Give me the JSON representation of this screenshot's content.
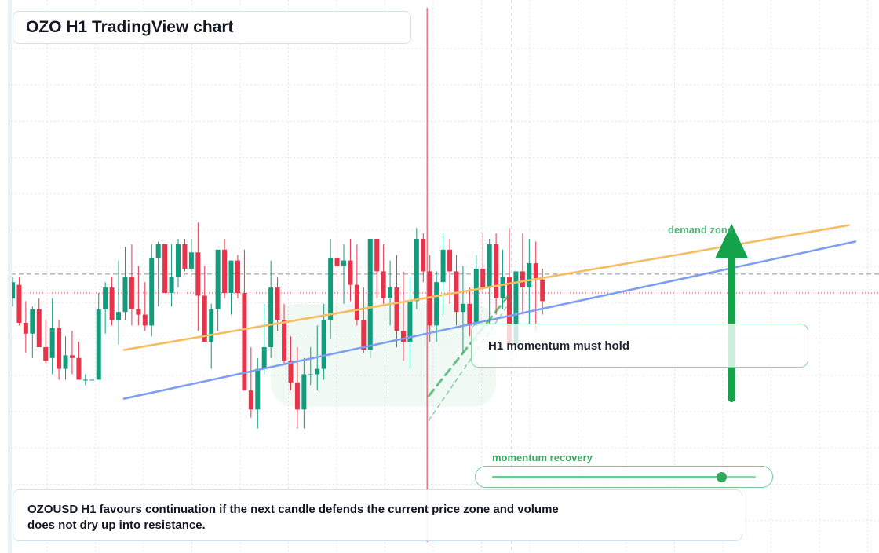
{
  "header": {
    "title": "OZO H1 TradingView chart"
  },
  "callout": {
    "text": "H1 momentum must hold"
  },
  "zone_label": "demand zone",
  "meter": {
    "label": "momentum recovery",
    "level": 0.87
  },
  "footer": {
    "note": "OZOUSD H1 favours continuation if the next candle defends the current price zone and volume does not dry up into resistance."
  },
  "colors": {
    "bull": "#129c7c",
    "bear": "#e8344b",
    "accent": "#2fa65a",
    "trend_orange": "#f5bd62",
    "trend_blue": "#7e9ff0",
    "grid": "#e3e6ea"
  },
  "icons": {
    "signal_arrow": "arrow-up-icon"
  },
  "chart_data": {
    "type": "candlestick",
    "symbol": "OZOUSD",
    "timeframe": "H1",
    "grid": true,
    "ylim": [
      0,
      100
    ],
    "x": [
      1,
      81
    ],
    "price_levels": [
      67,
      60
    ],
    "trendlines": [
      {
        "color": "orange",
        "from": [
          1,
          39
        ],
        "to": [
          77,
          85
        ]
      },
      {
        "color": "blue",
        "from": [
          1,
          21
        ],
        "to": [
          78,
          79
        ]
      },
      {
        "color": "green-dashed",
        "from": [
          38,
          22
        ],
        "to": [
          66,
          60
        ]
      },
      {
        "color": "green-dotted",
        "from": [
          38,
          13
        ],
        "to": [
          66,
          57
        ]
      }
    ],
    "demand_zone": {
      "x": [
        40,
        74
      ],
      "y": [
        18,
        56
      ]
    },
    "signal_arrow": {
      "x": 65,
      "y": [
        21,
        85
      ]
    },
    "candles": [
      {
        "o": 58,
        "h": 66,
        "l": 55,
        "c": 64
      },
      {
        "o": 63,
        "h": 66,
        "l": 48,
        "c": 49
      },
      {
        "o": 49,
        "h": 57,
        "l": 38,
        "c": 45
      },
      {
        "o": 45,
        "h": 55,
        "l": 36,
        "c": 54
      },
      {
        "o": 54,
        "h": 58,
        "l": 40,
        "c": 40
      },
      {
        "o": 40,
        "h": 50,
        "l": 34,
        "c": 35
      },
      {
        "o": 36,
        "h": 58,
        "l": 30,
        "c": 47
      },
      {
        "o": 47,
        "h": 50,
        "l": 28,
        "c": 32
      },
      {
        "o": 32,
        "h": 44,
        "l": 28,
        "c": 37
      },
      {
        "o": 37,
        "h": 46,
        "l": 30,
        "c": 36
      },
      {
        "o": 36,
        "h": 42,
        "l": 28,
        "c": 28
      },
      {
        "o": 28,
        "h": 30,
        "l": 26,
        "c": 28
      },
      {
        "o": 28,
        "h": 28,
        "l": 28,
        "c": 28
      },
      {
        "o": 28,
        "h": 60,
        "l": 28,
        "c": 54
      },
      {
        "o": 54,
        "h": 64,
        "l": 45,
        "c": 62
      },
      {
        "o": 62,
        "h": 66,
        "l": 48,
        "c": 50
      },
      {
        "o": 50,
        "h": 72,
        "l": 41,
        "c": 53
      },
      {
        "o": 53,
        "h": 77,
        "l": 50,
        "c": 66
      },
      {
        "o": 66,
        "h": 78,
        "l": 48,
        "c": 54
      },
      {
        "o": 54,
        "h": 70,
        "l": 48,
        "c": 52
      },
      {
        "o": 52,
        "h": 64,
        "l": 46,
        "c": 48
      },
      {
        "o": 48,
        "h": 78,
        "l": 44,
        "c": 73
      },
      {
        "o": 73,
        "h": 79,
        "l": 55,
        "c": 78
      },
      {
        "o": 78,
        "h": 78,
        "l": 60,
        "c": 60
      },
      {
        "o": 60,
        "h": 78,
        "l": 55,
        "c": 66
      },
      {
        "o": 66,
        "h": 80,
        "l": 62,
        "c": 78
      },
      {
        "o": 78,
        "h": 80,
        "l": 68,
        "c": 69
      },
      {
        "o": 69,
        "h": 80,
        "l": 68,
        "c": 75
      },
      {
        "o": 75,
        "h": 86,
        "l": 46,
        "c": 59
      },
      {
        "o": 59,
        "h": 70,
        "l": 42,
        "c": 42
      },
      {
        "o": 42,
        "h": 56,
        "l": 32,
        "c": 54
      },
      {
        "o": 54,
        "h": 76,
        "l": 46,
        "c": 76
      },
      {
        "o": 76,
        "h": 80,
        "l": 58,
        "c": 60
      },
      {
        "o": 60,
        "h": 72,
        "l": 52,
        "c": 72
      },
      {
        "o": 72,
        "h": 74,
        "l": 58,
        "c": 60
      },
      {
        "o": 60,
        "h": 76,
        "l": 25,
        "c": 24
      },
      {
        "o": 24,
        "h": 40,
        "l": 14,
        "c": 17
      },
      {
        "o": 17,
        "h": 36,
        "l": 10,
        "c": 32
      },
      {
        "o": 32,
        "h": 56,
        "l": 30,
        "c": 40
      },
      {
        "o": 40,
        "h": 72,
        "l": 36,
        "c": 62
      },
      {
        "o": 62,
        "h": 66,
        "l": 46,
        "c": 50
      },
      {
        "o": 50,
        "h": 56,
        "l": 34,
        "c": 35
      },
      {
        "o": 35,
        "h": 44,
        "l": 24,
        "c": 27
      },
      {
        "o": 27,
        "h": 40,
        "l": 10,
        "c": 17
      },
      {
        "o": 17,
        "h": 36,
        "l": 10,
        "c": 30
      },
      {
        "o": 30,
        "h": 40,
        "l": 26,
        "c": 30
      },
      {
        "o": 30,
        "h": 48,
        "l": 24,
        "c": 32
      },
      {
        "o": 32,
        "h": 56,
        "l": 28,
        "c": 50
      },
      {
        "o": 50,
        "h": 80,
        "l": 43,
        "c": 73
      },
      {
        "o": 73,
        "h": 80,
        "l": 58,
        "c": 70
      },
      {
        "o": 70,
        "h": 78,
        "l": 56,
        "c": 72
      },
      {
        "o": 72,
        "h": 80,
        "l": 57,
        "c": 63
      },
      {
        "o": 63,
        "h": 78,
        "l": 48,
        "c": 50
      },
      {
        "o": 50,
        "h": 62,
        "l": 38,
        "c": 39
      },
      {
        "o": 39,
        "h": 80,
        "l": 36,
        "c": 80
      },
      {
        "o": 80,
        "h": 80,
        "l": 58,
        "c": 68
      },
      {
        "o": 68,
        "h": 78,
        "l": 56,
        "c": 58
      },
      {
        "o": 58,
        "h": 72,
        "l": 48,
        "c": 62
      },
      {
        "o": 62,
        "h": 74,
        "l": 40,
        "c": 46
      },
      {
        "o": 46,
        "h": 68,
        "l": 35,
        "c": 42
      },
      {
        "o": 42,
        "h": 66,
        "l": 32,
        "c": 57
      },
      {
        "o": 57,
        "h": 84,
        "l": 54,
        "c": 80
      },
      {
        "o": 80,
        "h": 82,
        "l": 64,
        "c": 68
      },
      {
        "o": 68,
        "h": 74,
        "l": 42,
        "c": 48
      },
      {
        "o": 48,
        "h": 68,
        "l": 42,
        "c": 64
      },
      {
        "o": 64,
        "h": 82,
        "l": 52,
        "c": 76
      },
      {
        "o": 76,
        "h": 80,
        "l": 56,
        "c": 68
      },
      {
        "o": 68,
        "h": 74,
        "l": 48,
        "c": 53
      },
      {
        "o": 53,
        "h": 70,
        "l": 38,
        "c": 56
      },
      {
        "o": 56,
        "h": 62,
        "l": 44,
        "c": 48
      },
      {
        "o": 48,
        "h": 74,
        "l": 42,
        "c": 69
      },
      {
        "o": 69,
        "h": 82,
        "l": 60,
        "c": 62
      },
      {
        "o": 62,
        "h": 80,
        "l": 48,
        "c": 78
      },
      {
        "o": 78,
        "h": 82,
        "l": 52,
        "c": 58
      },
      {
        "o": 58,
        "h": 76,
        "l": 54,
        "c": 66
      },
      {
        "o": 66,
        "h": 84,
        "l": 40,
        "c": 41
      },
      {
        "o": 41,
        "h": 72,
        "l": 36,
        "c": 68
      },
      {
        "o": 68,
        "h": 82,
        "l": 52,
        "c": 62
      },
      {
        "o": 62,
        "h": 80,
        "l": 48,
        "c": 71
      },
      {
        "o": 71,
        "h": 79,
        "l": 46,
        "c": 65
      },
      {
        "o": 65,
        "h": 69,
        "l": 52,
        "c": 57
      }
    ]
  }
}
